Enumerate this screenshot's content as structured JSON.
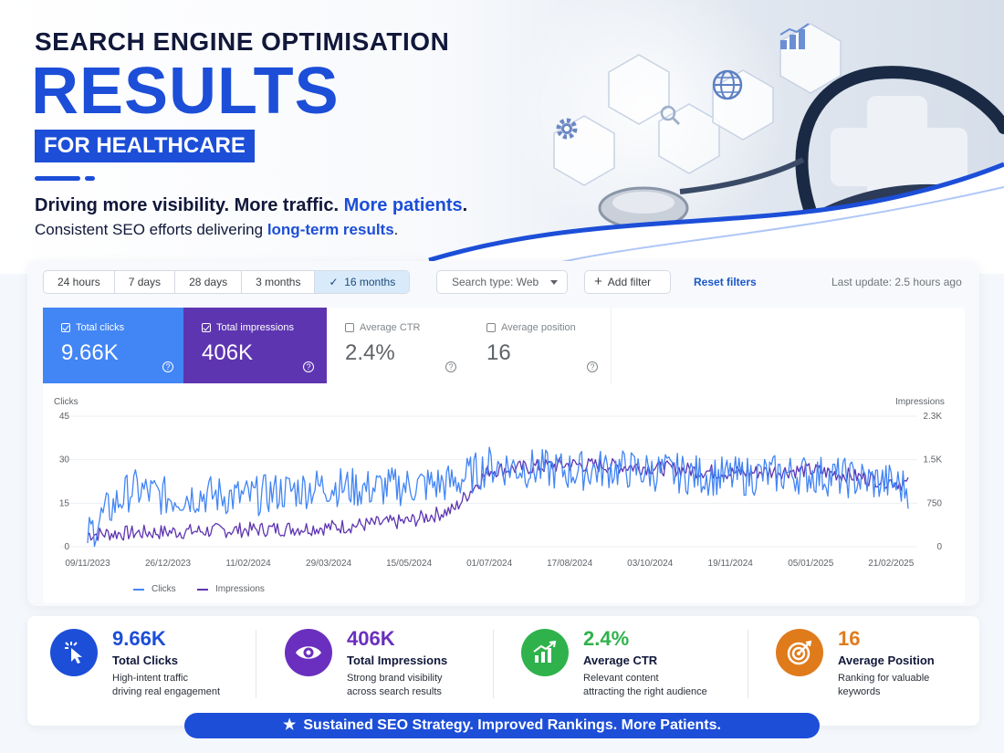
{
  "hero": {
    "title_line1": "SEARCH ENGINE OPTIMISATION",
    "title_line2": "RESULTS",
    "title_line3": "FOR HEALTHCARE",
    "tagline_a": "Driving more visibility. More traffic. ",
    "tagline_a_accent": "More patients",
    "tagline_a_end": ".",
    "tagline_b": "Consistent SEO efforts delivering ",
    "tagline_b_accent": "long-term results",
    "tagline_b_end": "."
  },
  "toolbar": {
    "ranges": [
      "24 hours",
      "7 days",
      "28 days",
      "3 months",
      "16 months"
    ],
    "active_range": "16 months",
    "search_type": "Search type: Web",
    "add_filter": "Add filter",
    "reset": "Reset filters",
    "last_update": "Last update: 2.5 hours ago"
  },
  "metrics": {
    "clicks": {
      "label": "Total clicks",
      "value": "9.66K",
      "checked": true
    },
    "impressions": {
      "label": "Total impressions",
      "value": "406K",
      "checked": true
    },
    "ctr": {
      "label": "Average CTR",
      "value": "2.4%",
      "checked": false
    },
    "position": {
      "label": "Average position",
      "value": "16",
      "checked": false
    }
  },
  "chart_data": {
    "type": "line",
    "left_axis_title": "Clicks",
    "right_axis_title": "Impressions",
    "left_ticks": [
      "45",
      "30",
      "15",
      "0"
    ],
    "left_ylim": [
      0,
      45
    ],
    "right_ticks": [
      "2.3K",
      "1.5K",
      "750",
      "0"
    ],
    "right_ylim": [
      0,
      2300
    ],
    "x_ticks": [
      "09/11/2023",
      "26/12/2023",
      "11/02/2024",
      "29/03/2024",
      "15/05/2024",
      "01/07/2024",
      "17/08/2024",
      "03/10/2024",
      "19/11/2024",
      "05/01/2025",
      "21/02/2025"
    ],
    "x_range": [
      "2023-11-09",
      "2025-03-03"
    ],
    "series": [
      {
        "name": "Clicks",
        "color": "#4285f4",
        "axis": "left",
        "anchors": [
          [
            "2023-11-09",
            4
          ],
          [
            "2023-11-20",
            12
          ],
          [
            "2023-12-05",
            20
          ],
          [
            "2023-12-26",
            17
          ],
          [
            "2024-01-15",
            18
          ],
          [
            "2024-02-11",
            17
          ],
          [
            "2024-03-01",
            19
          ],
          [
            "2024-03-29",
            21
          ],
          [
            "2024-04-20",
            20
          ],
          [
            "2024-05-15",
            21
          ],
          [
            "2024-06-10",
            22
          ],
          [
            "2024-07-01",
            28
          ],
          [
            "2024-08-17",
            26
          ],
          [
            "2024-09-10",
            27
          ],
          [
            "2024-10-03",
            26
          ],
          [
            "2024-11-19",
            24
          ],
          [
            "2024-12-15",
            25
          ],
          [
            "2025-01-05",
            25
          ],
          [
            "2025-02-21",
            22
          ],
          [
            "2025-03-03",
            20
          ]
        ],
        "noise": 7
      },
      {
        "name": "Impressions",
        "color": "#5e35b1",
        "axis": "right",
        "anchors": [
          [
            "2023-11-09",
            220
          ],
          [
            "2023-12-26",
            260
          ],
          [
            "2024-02-11",
            300
          ],
          [
            "2024-03-29",
            340
          ],
          [
            "2024-05-15",
            450
          ],
          [
            "2024-06-10",
            650
          ],
          [
            "2024-07-01",
            1350
          ],
          [
            "2024-08-17",
            1450
          ],
          [
            "2024-10-03",
            1400
          ],
          [
            "2024-11-19",
            1300
          ],
          [
            "2025-01-05",
            1350
          ],
          [
            "2025-02-21",
            1150
          ],
          [
            "2025-03-03",
            1100
          ]
        ],
        "noise": 150
      }
    ]
  },
  "stats": [
    {
      "value": "9.66K",
      "name": "Total Clicks",
      "desc1": "High-intent traffic",
      "desc2": "driving real engagement",
      "color": "#1c4ed8",
      "icon": "cursor-click-icon"
    },
    {
      "value": "406K",
      "name": "Total Impressions",
      "desc1": "Strong brand visibility",
      "desc2": "across search results",
      "color": "#6a2fbe",
      "icon": "eye-icon"
    },
    {
      "value": "2.4%",
      "name": "Average CTR",
      "desc1": "Relevant content",
      "desc2": "attracting the right audience",
      "color": "#2fb24c",
      "icon": "growth-chart-icon"
    },
    {
      "value": "16",
      "name": "Average Position",
      "desc1": "Ranking for valuable",
      "desc2": "keywords",
      "color": "#e07b1c",
      "icon": "target-icon"
    }
  ],
  "banner": "Sustained SEO Strategy. Improved Rankings. More Patients.",
  "colors": {
    "brand_blue": "#1c4ed8",
    "clicks_blue": "#4285f4",
    "impressions_purple": "#5e35b1"
  }
}
